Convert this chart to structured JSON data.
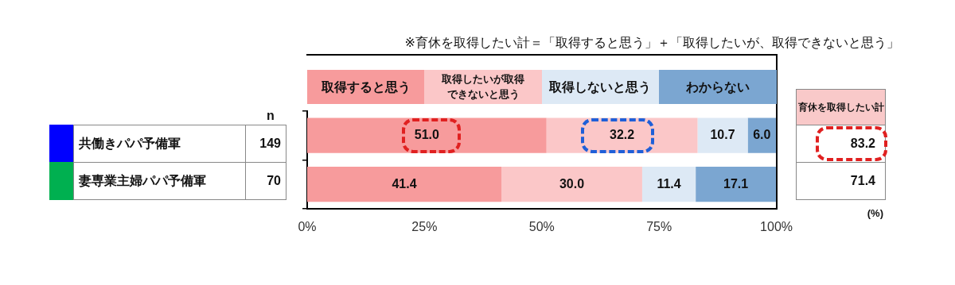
{
  "chart_data": {
    "type": "bar",
    "orientation": "horizontal",
    "stacked": true,
    "legend": "top",
    "categories": [
      "共働きパパ予備軍",
      "妻専業主婦パパ予備軍"
    ],
    "series": [
      {
        "name": "取得すると思う",
        "color": "#f79b9c",
        "values": [
          51.0,
          41.4
        ],
        "value_labels": [
          "51.0",
          "41.4"
        ]
      },
      {
        "name": "取得したいが取得できないと思う",
        "color": "#fbc7c8",
        "values": [
          32.2,
          30.0
        ],
        "value_labels": [
          "32.2",
          "30.0"
        ]
      },
      {
        "name": "取得しないと思う",
        "color": "#dde9f5",
        "values": [
          10.7,
          11.4
        ],
        "value_labels": [
          "10.7",
          "11.4"
        ]
      },
      {
        "name": "わからない",
        "color": "#7ba6d1",
        "values": [
          6.0,
          17.1
        ],
        "value_labels": [
          "6.0",
          "17.1"
        ]
      }
    ],
    "xlim": [
      0,
      100
    ],
    "xticks": [
      {
        "value": 0,
        "label": "0%"
      },
      {
        "value": 25,
        "label": "25%"
      },
      {
        "value": 50,
        "label": "50%"
      },
      {
        "value": 75,
        "label": "75%"
      },
      {
        "value": 100,
        "label": "100%"
      }
    ],
    "annotations": [
      "※育休を取得したい計＝「取得すると思う」＋「取得したいが、取得できないと思う」",
      "n",
      "149",
      "70",
      "育休を取得したい計",
      "83.2",
      "71.4",
      "(%)"
    ]
  }
}
